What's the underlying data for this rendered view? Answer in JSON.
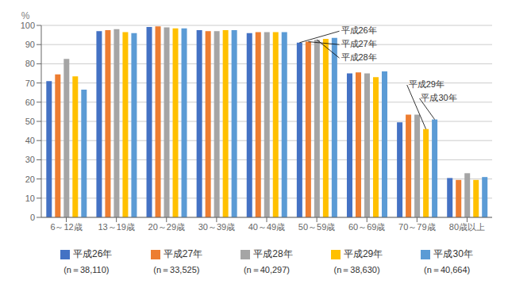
{
  "chart_data": {
    "type": "bar",
    "categories": [
      "6～12歳",
      "13～19歳",
      "20～29歳",
      "30～39歳",
      "40～49歳",
      "50～59歳",
      "60～69歳",
      "70～79歳",
      "80歳以上"
    ],
    "series": [
      {
        "name": "平成26年",
        "color": "#4472C4",
        "values": [
          71.0,
          97.0,
          99.2,
          97.5,
          96.0,
          91.0,
          75.0,
          49.5,
          20.5
        ],
        "n_label": "(n＝38,110)"
      },
      {
        "name": "平成27年",
        "color": "#ED7D31",
        "values": [
          74.5,
          97.5,
          99.5,
          97.0,
          96.5,
          91.5,
          75.5,
          53.5,
          19.5
        ],
        "n_label": "(n＝33,525)"
      },
      {
        "name": "平成28年",
        "color": "#A5A5A5",
        "values": [
          82.5,
          98.0,
          99.0,
          97.0,
          96.5,
          92.5,
          75.0,
          53.5,
          23.0
        ],
        "n_label": "(n＝40,297)"
      },
      {
        "name": "平成29年",
        "color": "#FFC000",
        "values": [
          73.5,
          96.5,
          98.5,
          97.5,
          96.5,
          93.0,
          73.0,
          46.0,
          19.5
        ],
        "n_label": "(n＝38,630)"
      },
      {
        "name": "平成30年",
        "color": "#5B9BD5",
        "values": [
          66.5,
          96.0,
          98.5,
          97.5,
          96.5,
          93.5,
          76.0,
          51.0,
          21.0
        ],
        "n_label": "(n＝40,664)"
      }
    ],
    "ylabel": "%",
    "ylim": [
      0,
      100
    ],
    "yticks": [
      0,
      10,
      20,
      30,
      40,
      50,
      60,
      70,
      80,
      90,
      100
    ],
    "grid": true,
    "legend": "bottom",
    "annotations": [
      {
        "text": "平成26年",
        "category": "50～59歳",
        "series": "平成26年"
      },
      {
        "text": "平成27年",
        "category": "50～59歳",
        "series": "平成27年"
      },
      {
        "text": "平成28年",
        "category": "50～59歳",
        "series": "平成28年"
      },
      {
        "text": "平成29年",
        "category": "70～79歳",
        "series": "平成29年"
      },
      {
        "text": "平成30年",
        "category": "70～79歳",
        "series": "平成30年"
      }
    ]
  }
}
